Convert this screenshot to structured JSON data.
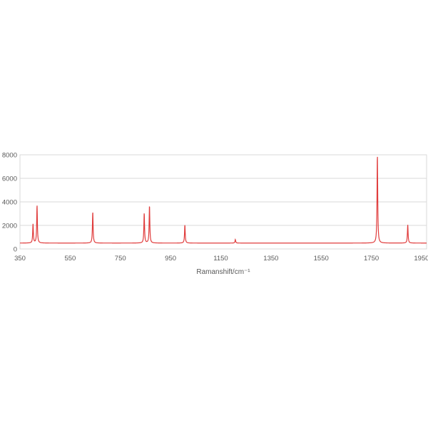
{
  "chart_data": {
    "type": "line",
    "title": "",
    "xlabel": "Ramanshift/cm⁻¹",
    "ylabel": "",
    "xlim": [
      350,
      1970
    ],
    "ylim": [
      0,
      8000
    ],
    "xticks": [
      350,
      550,
      750,
      950,
      1150,
      1350,
      1550,
      1750,
      1950
    ],
    "yticks": [
      0,
      2000,
      4000,
      6000,
      8000
    ],
    "grid": true,
    "legend": "none",
    "baseline": 500,
    "line_color": "#e03c3c",
    "series": [
      {
        "peaks": [
          {
            "x": 402,
            "y": 2100
          },
          {
            "x": 418,
            "y": 3700
          },
          {
            "x": 640,
            "y": 3150
          },
          {
            "x": 845,
            "y": 3050
          },
          {
            "x": 866,
            "y": 3700
          },
          {
            "x": 1007,
            "y": 2050
          },
          {
            "x": 1208,
            "y": 800
          },
          {
            "x": 1774,
            "y": 8000
          },
          {
            "x": 1895,
            "y": 2050
          }
        ]
      }
    ]
  }
}
